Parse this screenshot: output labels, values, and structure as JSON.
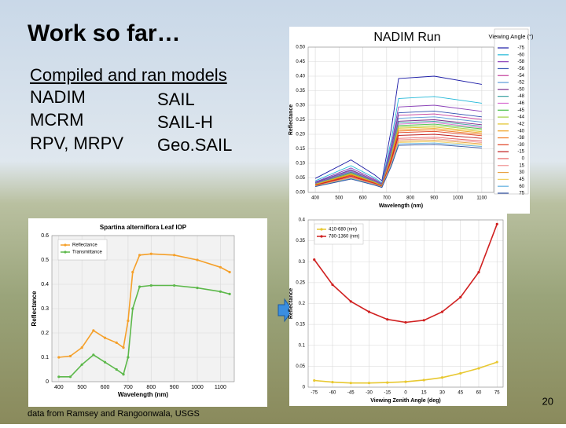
{
  "slide": {
    "title": "Work so far…",
    "subtitle": "Compiled and ran models",
    "models": [
      [
        "NADIM",
        "SAIL"
      ],
      [
        "MCRM",
        "SAIL-H"
      ],
      [
        "RPV, MRPV",
        "Geo.SAIL"
      ]
    ],
    "source": "data from Ramsey and Rangoonwala, USGS",
    "page_number": "20"
  },
  "chart_data": [
    {
      "type": "line",
      "title": "NADIM Run",
      "x_label": "Wavelength (nm)",
      "y_label": "Reflectance",
      "legend_title": "Viewing Angle (°)",
      "legend": "right",
      "grid": true,
      "markers": false,
      "x": [
        400,
        550,
        650,
        680,
        720,
        750,
        900,
        1100
      ],
      "xlim": [
        370,
        1150
      ],
      "xticks": [
        400,
        500,
        600,
        700,
        800,
        900,
        1000,
        1100
      ],
      "ylim": [
        0,
        0.5
      ],
      "yticks": [
        {
          "value": 0,
          "label": "0.00"
        },
        {
          "value": 0.05,
          "label": "0.05"
        },
        {
          "value": 0.1,
          "label": "0.10"
        },
        {
          "value": 0.15,
          "label": "0.15"
        },
        {
          "value": 0.2,
          "label": "0.20"
        },
        {
          "value": 0.25,
          "label": "0.25"
        },
        {
          "value": 0.3,
          "label": "0.30"
        },
        {
          "value": 0.35,
          "label": "0.35"
        },
        {
          "value": 0.4,
          "label": "0.40"
        },
        {
          "value": 0.45,
          "label": "0.45"
        },
        {
          "value": 0.5,
          "label": "0.50"
        }
      ],
      "series": [
        {
          "name": "-75",
          "color": "#1a1aa6",
          "values": [
            0.048,
            0.112,
            0.06,
            0.04,
            0.22,
            0.392,
            0.4,
            0.372
          ]
        },
        {
          "name": "-60",
          "color": "#22b8d8",
          "values": [
            0.04,
            0.092,
            0.05,
            0.033,
            0.182,
            0.323,
            0.33,
            0.307
          ]
        },
        {
          "name": "-58",
          "color": "#8a3fb8",
          "values": [
            0.036,
            0.084,
            0.045,
            0.03,
            0.165,
            0.294,
            0.3,
            0.279
          ]
        },
        {
          "name": "-56",
          "color": "#2e4fb0",
          "values": [
            0.034,
            0.078,
            0.042,
            0.028,
            0.154,
            0.274,
            0.28,
            0.26
          ]
        },
        {
          "name": "-54",
          "color": "#c23a9a",
          "values": [
            0.032,
            0.076,
            0.041,
            0.027,
            0.149,
            0.265,
            0.27,
            0.251
          ]
        },
        {
          "name": "-52",
          "color": "#5a9ad8",
          "values": [
            0.031,
            0.073,
            0.039,
            0.026,
            0.143,
            0.255,
            0.26,
            0.242
          ]
        },
        {
          "name": "-50",
          "color": "#7a2a8a",
          "values": [
            0.03,
            0.07,
            0.038,
            0.025,
            0.138,
            0.245,
            0.25,
            0.233
          ]
        },
        {
          "name": "-48",
          "color": "#3aa0a0",
          "values": [
            0.029,
            0.069,
            0.037,
            0.025,
            0.135,
            0.24,
            0.245,
            0.228
          ]
        },
        {
          "name": "-46",
          "color": "#d86ad0",
          "values": [
            0.029,
            0.067,
            0.036,
            0.024,
            0.132,
            0.235,
            0.24,
            0.223
          ]
        },
        {
          "name": "-45",
          "color": "#48c048",
          "values": [
            0.028,
            0.066,
            0.035,
            0.024,
            0.129,
            0.23,
            0.235,
            0.219
          ]
        },
        {
          "name": "-44",
          "color": "#a0d040",
          "values": [
            0.028,
            0.064,
            0.035,
            0.023,
            0.127,
            0.225,
            0.23,
            0.214
          ]
        },
        {
          "name": "-42",
          "color": "#e0c020",
          "values": [
            0.027,
            0.063,
            0.034,
            0.023,
            0.124,
            0.221,
            0.225,
            0.209
          ]
        },
        {
          "name": "-40",
          "color": "#f0a020",
          "values": [
            0.026,
            0.062,
            0.033,
            0.022,
            0.121,
            0.216,
            0.22,
            0.205
          ]
        },
        {
          "name": "-38",
          "color": "#f07820",
          "values": [
            0.026,
            0.06,
            0.032,
            0.022,
            0.118,
            0.211,
            0.215,
            0.2
          ]
        },
        {
          "name": "-30",
          "color": "#e04020",
          "values": [
            0.025,
            0.059,
            0.032,
            0.021,
            0.116,
            0.206,
            0.21,
            0.195
          ]
        },
        {
          "name": "-15",
          "color": "#c01818",
          "values": [
            0.024,
            0.056,
            0.03,
            0.02,
            0.11,
            0.196,
            0.2,
            0.186
          ]
        },
        {
          "name": "0",
          "color": "#e86060",
          "values": [
            0.023,
            0.053,
            0.029,
            0.019,
            0.105,
            0.186,
            0.19,
            0.177
          ]
        },
        {
          "name": "15",
          "color": "#f09090",
          "values": [
            0.022,
            0.052,
            0.028,
            0.019,
            0.102,
            0.181,
            0.185,
            0.172
          ]
        },
        {
          "name": "30",
          "color": "#e8a040",
          "values": [
            0.022,
            0.05,
            0.027,
            0.018,
            0.099,
            0.176,
            0.18,
            0.167
          ]
        },
        {
          "name": "45",
          "color": "#f0d060",
          "values": [
            0.021,
            0.049,
            0.026,
            0.018,
            0.096,
            0.172,
            0.175,
            0.163
          ]
        },
        {
          "name": "60",
          "color": "#60b0e0",
          "values": [
            0.02,
            0.048,
            0.026,
            0.017,
            0.094,
            0.167,
            0.17,
            0.158
          ]
        },
        {
          "name": "75",
          "color": "#3050a0",
          "values": [
            0.02,
            0.046,
            0.025,
            0.017,
            0.091,
            0.162,
            0.165,
            0.153
          ]
        }
      ]
    },
    {
      "type": "line",
      "title": "Spartina alterniflora Leaf IOP",
      "x_label": "Wavelength (nm)",
      "y_label": "Reflectance",
      "legend": "upper left",
      "grid": true,
      "markers": true,
      "x": [
        400,
        450,
        500,
        550,
        600,
        650,
        680,
        700,
        720,
        750,
        800,
        900,
        1000,
        1100,
        1140
      ],
      "xlim": [
        370,
        1160
      ],
      "xticks": [
        400,
        500,
        600,
        700,
        800,
        900,
        1000,
        1100
      ],
      "ylim": [
        0,
        0.6
      ],
      "yticks": [
        0,
        0.1,
        0.2,
        0.3,
        0.4,
        0.5,
        0.6
      ],
      "series": [
        {
          "name": "Reflectance",
          "color": "#f5a02a",
          "values": [
            0.1,
            0.105,
            0.14,
            0.21,
            0.18,
            0.16,
            0.14,
            0.25,
            0.45,
            0.52,
            0.525,
            0.52,
            0.5,
            0.47,
            0.45
          ]
        },
        {
          "name": "Transmittance",
          "color": "#5cb84a",
          "values": [
            0.02,
            0.02,
            0.07,
            0.11,
            0.08,
            0.05,
            0.03,
            0.1,
            0.3,
            0.39,
            0.395,
            0.395,
            0.385,
            0.37,
            0.36
          ]
        }
      ]
    },
    {
      "type": "line",
      "x_label": "Viewing Zenith Angle (deg)",
      "y_label": "Reflectance",
      "legend": "upper left",
      "grid": true,
      "markers": true,
      "x": [
        -75,
        -60,
        -45,
        -30,
        -15,
        0,
        15,
        30,
        45,
        60,
        75
      ],
      "xlim": [
        -80,
        80
      ],
      "xticks": [
        -75,
        -60,
        -45,
        -30,
        -15,
        0,
        15,
        30,
        45,
        60,
        75
      ],
      "ylim": [
        0,
        0.4
      ],
      "yticks": [
        0,
        0.05,
        0.1,
        0.15,
        0.2,
        0.25,
        0.3,
        0.35,
        0.4
      ],
      "series": [
        {
          "name": "410-680 (nm)",
          "color": "#e8c830",
          "values": [
            0.016,
            0.012,
            0.01,
            0.01,
            0.011,
            0.013,
            0.017,
            0.023,
            0.033,
            0.045,
            0.06
          ]
        },
        {
          "name": "780-1360 (nm)",
          "color": "#d02020",
          "values": [
            0.305,
            0.245,
            0.205,
            0.18,
            0.162,
            0.155,
            0.16,
            0.18,
            0.215,
            0.275,
            0.39
          ]
        }
      ]
    }
  ]
}
